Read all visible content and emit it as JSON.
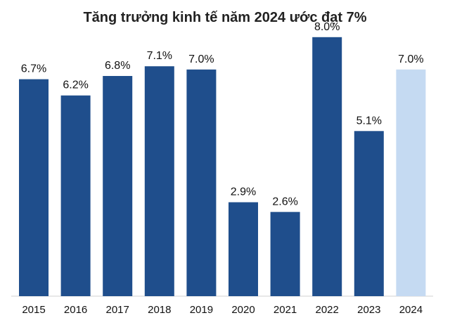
{
  "chart_data": {
    "type": "bar",
    "title": "Tăng trưởng kinh tế năm 2024 ước đạt 7%",
    "categories": [
      "2015",
      "2016",
      "2017",
      "2018",
      "2019",
      "2020",
      "2021",
      "2022",
      "2023",
      "2024"
    ],
    "values": [
      6.7,
      6.2,
      6.8,
      7.1,
      7.0,
      2.9,
      2.6,
      8.0,
      5.1,
      7.0
    ],
    "data_labels": [
      "6.7%",
      "6.2%",
      "6.8%",
      "7.1%",
      "7.0%",
      "2.9%",
      "2.6%",
      "8.0%",
      "5.1%",
      "7.0%"
    ],
    "estimated": [
      false,
      false,
      false,
      false,
      false,
      false,
      false,
      false,
      false,
      true
    ],
    "ylim": [
      0,
      8.8
    ],
    "xlabel": "",
    "ylabel": "",
    "grid": false,
    "colors": {
      "actual": "#1f4e8c",
      "estimate": "#c5daf2"
    }
  }
}
